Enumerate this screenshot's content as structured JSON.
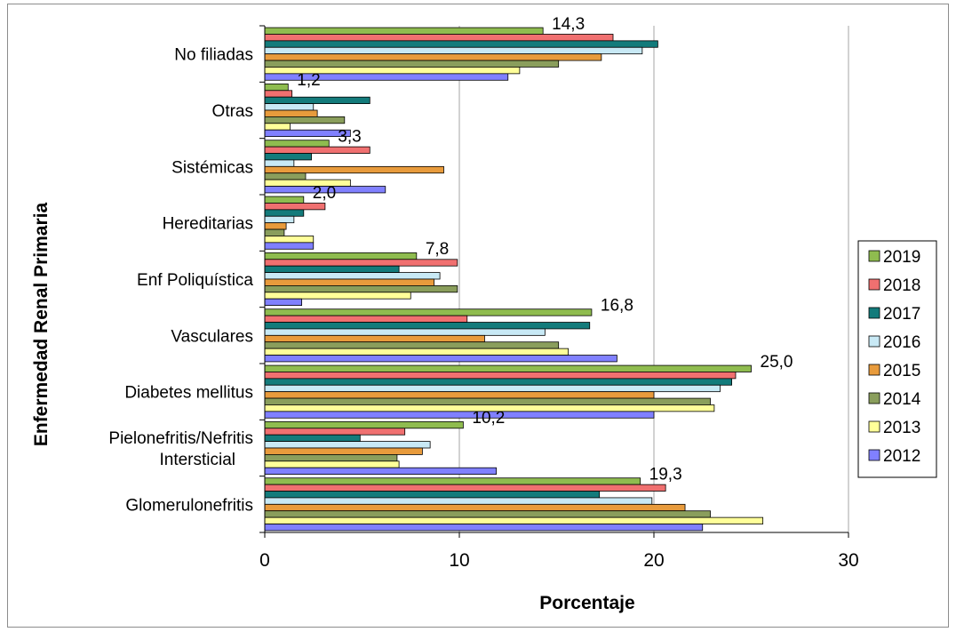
{
  "chart_data": {
    "type": "bar",
    "orientation": "horizontal",
    "title": "",
    "xlabel": "Porcentaje",
    "ylabel": "Enfermedad Renal Primaria",
    "xlim": [
      0,
      30
    ],
    "x_ticks": [
      "0",
      "10",
      "20",
      "30"
    ],
    "grid": "vertical",
    "legend_position": "right",
    "categories": [
      "No filiadas",
      "Otras",
      "Sistémicas",
      "Hereditarias",
      "Enf Poliquística",
      "Vasculares",
      "Diabetes mellitus",
      "Pielonefritis/Nefritis Intersticial",
      "Glomerulonefritis"
    ],
    "category_label_lines": [
      [
        "No filiadas"
      ],
      [
        "Otras"
      ],
      [
        "Sistémicas"
      ],
      [
        "Hereditarias"
      ],
      [
        "Enf Poliquística"
      ],
      [
        "Vasculares"
      ],
      [
        "Diabetes mellitus"
      ],
      [
        "Pielonefritis/Nefritis",
        "Intersticial"
      ],
      [
        "Glomerulonefritis"
      ]
    ],
    "series": [
      {
        "name": "2019",
        "color": "#8fbc4f",
        "values": [
          14.3,
          1.2,
          3.3,
          2.0,
          7.8,
          16.8,
          25.0,
          10.2,
          19.3
        ]
      },
      {
        "name": "2018",
        "color": "#f07070",
        "values": [
          17.9,
          1.4,
          5.4,
          3.1,
          9.9,
          10.4,
          24.2,
          7.2,
          20.6
        ]
      },
      {
        "name": "2017",
        "color": "#137b7b",
        "values": [
          20.2,
          5.4,
          2.4,
          2.0,
          6.9,
          16.7,
          24.0,
          4.9,
          17.2
        ]
      },
      {
        "name": "2016",
        "color": "#c8e9f5",
        "values": [
          19.4,
          2.5,
          1.5,
          1.5,
          9.0,
          14.4,
          23.4,
          8.5,
          19.9
        ]
      },
      {
        "name": "2015",
        "color": "#e89b3c",
        "values": [
          17.3,
          2.7,
          9.2,
          1.1,
          8.7,
          11.3,
          20.0,
          8.1,
          21.6
        ]
      },
      {
        "name": "2014",
        "color": "#8a9e5c",
        "values": [
          15.1,
          4.1,
          2.1,
          1.0,
          9.9,
          15.1,
          22.9,
          6.8,
          22.9
        ]
      },
      {
        "name": "2013",
        "color": "#ffff99",
        "values": [
          13.1,
          1.3,
          4.4,
          2.5,
          7.5,
          15.6,
          23.1,
          6.9,
          25.6
        ]
      },
      {
        "name": "2012",
        "color": "#8080ff",
        "values": [
          12.5,
          4.4,
          6.2,
          2.5,
          1.9,
          18.1,
          20.0,
          11.9,
          22.5
        ]
      }
    ],
    "data_labels": [
      "14,3",
      "1,2",
      "3,3",
      "2,0",
      "7,8",
      "16,8",
      "25,0",
      "10,2",
      "19,3"
    ]
  }
}
